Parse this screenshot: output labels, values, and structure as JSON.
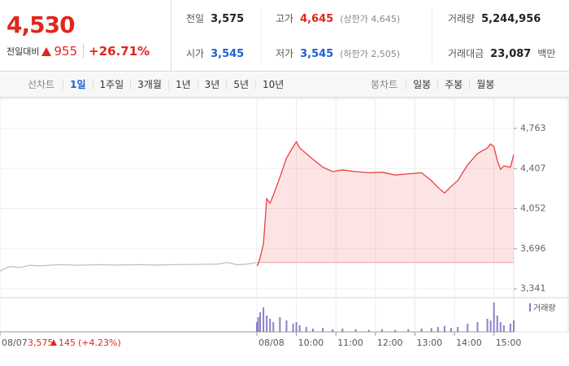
{
  "header": {
    "price": "4,530",
    "change_label": "전일대비",
    "change": "955",
    "change_rate": "+26.71%",
    "stats": [
      [
        {
          "label": "전일",
          "value": "3,575"
        },
        {
          "label": "고가",
          "value": "4,645",
          "note": "(상한가 4,645)",
          "color": "#e1261c"
        },
        {
          "label": "거래량",
          "value": "5,244,956"
        }
      ],
      [
        {
          "label": "시가",
          "value": "3,545",
          "color": "#1f5fd1"
        },
        {
          "label": "저가",
          "value": "3,545",
          "note": "(하한가 2,505)",
          "color": "#1f5fd1"
        },
        {
          "label": "거래대금",
          "value": "23,087",
          "unit": "백만"
        }
      ]
    ]
  },
  "tabs": {
    "line_label": "선차트",
    "periods": [
      "1일",
      "1주일",
      "3개월",
      "1년",
      "3년",
      "5년",
      "10년"
    ],
    "selected": 0,
    "candle_label": "봉차트",
    "candles": [
      "일봉",
      "주봉",
      "월봉"
    ]
  },
  "chart_data": {
    "type": "line",
    "xlim": [
      -390,
      390
    ],
    "xticks": [
      {
        "value": -390,
        "label": "08/07"
      },
      {
        "value": 0,
        "label": "08/08"
      },
      {
        "value": 60,
        "label": "10:00"
      },
      {
        "value": 120,
        "label": "11:00"
      },
      {
        "value": 180,
        "label": "12:00"
      },
      {
        "value": 240,
        "label": "13:00"
      },
      {
        "value": 300,
        "label": "14:00"
      },
      {
        "value": 360,
        "label": "15:00"
      }
    ],
    "ylim": [
      3270,
      5000
    ],
    "yticks": [
      {
        "value": 4763,
        "label": "4,763"
      },
      {
        "value": 4407,
        "label": "4,407"
      },
      {
        "value": 4052,
        "label": "4,052"
      },
      {
        "value": 3696,
        "label": "3,696"
      },
      {
        "value": 3341,
        "label": "3,341"
      }
    ],
    "y2lim": [
      0,
      100
    ],
    "baseline": 3575,
    "grid": true,
    "prev_day_note": {
      "close": "3,575",
      "change": "145",
      "rate": "(+4.23%)",
      "color": "#e1261c"
    },
    "series": [
      {
        "type": "line",
        "color": "#bdbdbd",
        "x": [
          -390,
          -375,
          -360,
          -345,
          -330,
          -300,
          -270,
          -240,
          -210,
          -180,
          -150,
          -120,
          -90,
          -60,
          -45,
          -30,
          -15,
          -1
        ],
        "values": [
          3500,
          3540,
          3530,
          3550,
          3545,
          3555,
          3550,
          3555,
          3552,
          3555,
          3552,
          3556,
          3558,
          3560,
          3575,
          3555,
          3560,
          3575
        ]
      },
      {
        "type": "area",
        "color": "#e8413c",
        "fill": "rgba(240,90,90,0.16)",
        "x": [
          0,
          2,
          5,
          10,
          15,
          20,
          25,
          35,
          45,
          55,
          60,
          65,
          75,
          85,
          100,
          115,
          130,
          150,
          170,
          190,
          210,
          230,
          250,
          265,
          275,
          285,
          295,
          305,
          320,
          335,
          350,
          355,
          360,
          365,
          370,
          375,
          385,
          390
        ],
        "values": [
          3545,
          3560,
          3620,
          3740,
          4140,
          4100,
          4170,
          4330,
          4500,
          4600,
          4645,
          4590,
          4540,
          4490,
          4420,
          4380,
          4395,
          4380,
          4370,
          4375,
          4350,
          4360,
          4370,
          4300,
          4240,
          4190,
          4250,
          4300,
          4440,
          4540,
          4590,
          4625,
          4600,
          4480,
          4400,
          4430,
          4420,
          4530
        ]
      },
      {
        "type": "bar",
        "name": "거래량",
        "axis": "y2",
        "color": "#8b80c9",
        "x": [
          0,
          2,
          5,
          10,
          15,
          20,
          25,
          35,
          45,
          55,
          60,
          65,
          75,
          85,
          100,
          115,
          130,
          150,
          170,
          190,
          210,
          230,
          250,
          265,
          275,
          285,
          295,
          305,
          320,
          335,
          350,
          355,
          360,
          365,
          370,
          375,
          385,
          390
        ],
        "values": [
          30,
          45,
          60,
          75,
          50,
          40,
          30,
          45,
          35,
          25,
          30,
          20,
          15,
          10,
          12,
          8,
          10,
          8,
          6,
          8,
          6,
          8,
          10,
          12,
          15,
          18,
          12,
          15,
          25,
          30,
          40,
          35,
          90,
          50,
          30,
          20,
          25,
          35
        ]
      }
    ]
  }
}
